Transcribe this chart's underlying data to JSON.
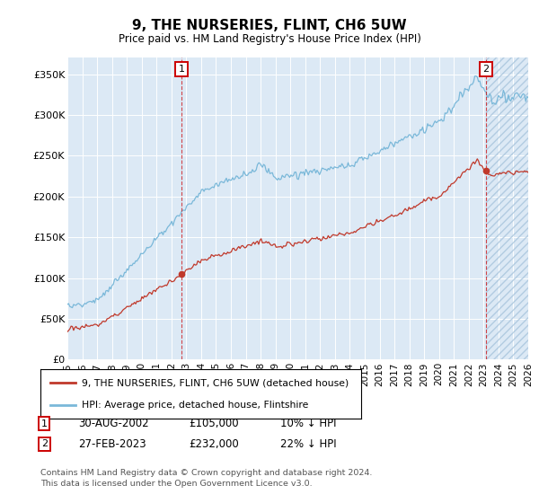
{
  "title": "9, THE NURSERIES, FLINT, CH6 5UW",
  "subtitle": "Price paid vs. HM Land Registry's House Price Index (HPI)",
  "ylim": [
    0,
    370000
  ],
  "yticks": [
    0,
    50000,
    100000,
    150000,
    200000,
    250000,
    300000,
    350000
  ],
  "ytick_labels": [
    "£0",
    "£50K",
    "£100K",
    "£150K",
    "£200K",
    "£250K",
    "£300K",
    "£350K"
  ],
  "x_start_year": 1995,
  "x_end_year": 2026,
  "sale1_date": 2002.67,
  "sale1_price": 105000,
  "sale2_date": 2023.16,
  "sale2_price": 232000,
  "sale1_display": "30-AUG-2002",
  "sale1_amount": "£105,000",
  "sale1_hpi": "10% ↓ HPI",
  "sale2_display": "27-FEB-2023",
  "sale2_amount": "£232,000",
  "sale2_hpi": "22% ↓ HPI",
  "legend_entry1": "9, THE NURSERIES, FLINT, CH6 5UW (detached house)",
  "legend_entry2": "HPI: Average price, detached house, Flintshire",
  "footer1": "Contains HM Land Registry data © Crown copyright and database right 2024.",
  "footer2": "This data is licensed under the Open Government Licence v3.0.",
  "hpi_color": "#7ab8d9",
  "price_color": "#c0392b",
  "chart_bg": "#dce9f5",
  "hatch_bg": "#c8ddf0"
}
